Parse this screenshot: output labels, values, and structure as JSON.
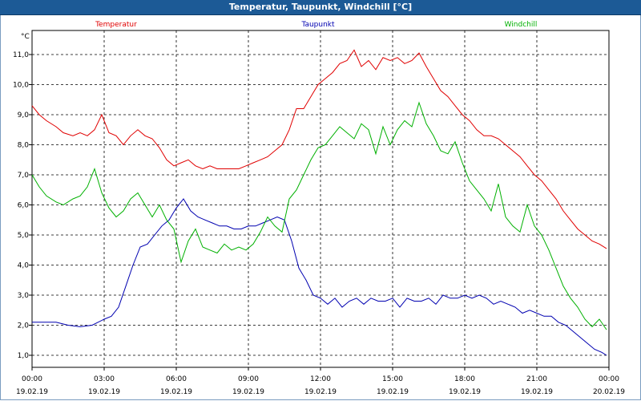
{
  "window": {
    "title": "Temperatur, Taupunkt, Windchill [°C]"
  },
  "chart_data": {
    "type": "line",
    "title": "Temperatur, Taupunkt, Windchill [°C]",
    "ylabel": "°C",
    "xlabel": "",
    "ylim": [
      0.6,
      11.8
    ],
    "y_ticks": [
      1.0,
      2.0,
      3.0,
      4.0,
      5.0,
      6.0,
      7.0,
      8.0,
      9.0,
      10.0,
      11.0
    ],
    "y_tick_labels": [
      "1,0",
      "2,0",
      "3,0",
      "4,0",
      "5,0",
      "6,0",
      "7,0",
      "8,0",
      "9,0",
      "10,0",
      "11,0"
    ],
    "xlim": [
      0,
      24
    ],
    "x_ticks": [
      {
        "hour": 0,
        "time": "00:00",
        "date": "19.02.19"
      },
      {
        "hour": 3,
        "time": "03:00",
        "date": "19.02.19"
      },
      {
        "hour": 6,
        "time": "06:00",
        "date": "19.02.19"
      },
      {
        "hour": 9,
        "time": "09:00",
        "date": "19.02.19"
      },
      {
        "hour": 12,
        "time": "12:00",
        "date": "19.02.19"
      },
      {
        "hour": 15,
        "time": "15:00",
        "date": "19.02.19"
      },
      {
        "hour": 18,
        "time": "18:00",
        "date": "19.02.19"
      },
      {
        "hour": 21,
        "time": "21:00",
        "date": "19.02.19"
      },
      {
        "hour": 24,
        "time": "00:00",
        "date": "20.02.19"
      }
    ],
    "grid": true,
    "series": [
      {
        "name": "Temperatur",
        "color": "#e00000",
        "x": [
          0,
          0.3,
          0.6,
          1,
          1.3,
          1.7,
          2,
          2.3,
          2.6,
          2.9,
          3.2,
          3.5,
          3.8,
          4.1,
          4.4,
          4.7,
          5,
          5.3,
          5.6,
          5.9,
          6.2,
          6.5,
          6.8,
          7.1,
          7.4,
          7.7,
          8,
          8.3,
          8.6,
          8.9,
          9.2,
          9.5,
          9.8,
          10.1,
          10.4,
          10.7,
          11,
          11.3,
          11.6,
          11.9,
          12.2,
          12.5,
          12.8,
          13.1,
          13.4,
          13.7,
          14,
          14.3,
          14.6,
          14.9,
          15.2,
          15.5,
          15.8,
          16.1,
          16.4,
          16.7,
          17,
          17.3,
          17.6,
          17.9,
          18.2,
          18.5,
          18.8,
          19.1,
          19.4,
          19.7,
          20,
          20.3,
          20.6,
          20.9,
          21.2,
          21.5,
          21.8,
          22.1,
          22.4,
          22.7,
          23,
          23.3,
          23.6,
          23.9
        ],
        "values": [
          9.3,
          9.0,
          8.8,
          8.6,
          8.4,
          8.3,
          8.4,
          8.3,
          8.5,
          9.0,
          8.4,
          8.3,
          8.0,
          8.3,
          8.5,
          8.3,
          8.2,
          7.9,
          7.5,
          7.3,
          7.4,
          7.5,
          7.3,
          7.2,
          7.3,
          7.2,
          7.2,
          7.2,
          7.2,
          7.3,
          7.4,
          7.5,
          7.6,
          7.8,
          8.0,
          8.5,
          9.2,
          9.2,
          9.6,
          10.0,
          10.2,
          10.4,
          10.7,
          10.8,
          11.15,
          10.6,
          10.8,
          10.5,
          10.9,
          10.8,
          10.9,
          10.7,
          10.8,
          11.05,
          10.6,
          10.2,
          9.8,
          9.6,
          9.3,
          9.0,
          8.8,
          8.5,
          8.3,
          8.3,
          8.2,
          8.0,
          7.8,
          7.6,
          7.3,
          7.0,
          6.8,
          6.5,
          6.2,
          5.8,
          5.5,
          5.2,
          5.0,
          4.8,
          4.7,
          4.55
        ]
      },
      {
        "name": "Taupunkt",
        "color": "#0000b0",
        "x": [
          0,
          0.5,
          1,
          1.5,
          2,
          2.5,
          3,
          3.3,
          3.6,
          3.9,
          4.2,
          4.5,
          4.8,
          5.1,
          5.4,
          5.7,
          6,
          6.3,
          6.6,
          6.9,
          7.2,
          7.5,
          7.8,
          8.1,
          8.4,
          8.7,
          9,
          9.3,
          9.6,
          9.9,
          10.2,
          10.5,
          10.8,
          11.1,
          11.4,
          11.7,
          12,
          12.3,
          12.6,
          12.9,
          13.2,
          13.5,
          13.8,
          14.1,
          14.4,
          14.7,
          15,
          15.3,
          15.6,
          15.9,
          16.2,
          16.5,
          16.8,
          17.1,
          17.4,
          17.7,
          18,
          18.3,
          18.6,
          18.9,
          19.2,
          19.5,
          19.8,
          20.1,
          20.4,
          20.7,
          21,
          21.3,
          21.6,
          21.9,
          22.2,
          22.5,
          22.8,
          23.1,
          23.4,
          23.7,
          23.9
        ],
        "values": [
          2.1,
          2.1,
          2.1,
          2.0,
          1.95,
          2.0,
          2.2,
          2.3,
          2.6,
          3.3,
          4.0,
          4.6,
          4.7,
          5.0,
          5.3,
          5.5,
          5.9,
          6.2,
          5.8,
          5.6,
          5.5,
          5.4,
          5.3,
          5.3,
          5.2,
          5.2,
          5.3,
          5.3,
          5.4,
          5.5,
          5.6,
          5.5,
          4.8,
          3.9,
          3.5,
          3.0,
          2.9,
          2.7,
          2.9,
          2.6,
          2.8,
          2.9,
          2.7,
          2.9,
          2.8,
          2.8,
          2.9,
          2.6,
          2.9,
          2.8,
          2.8,
          2.9,
          2.7,
          3.0,
          2.9,
          2.9,
          3.0,
          2.9,
          3.0,
          2.9,
          2.7,
          2.8,
          2.7,
          2.6,
          2.4,
          2.5,
          2.4,
          2.3,
          2.3,
          2.1,
          2.0,
          1.8,
          1.6,
          1.4,
          1.2,
          1.1,
          1.0
        ]
      },
      {
        "name": "Windchill",
        "color": "#00b000",
        "x": [
          0,
          0.3,
          0.6,
          1,
          1.3,
          1.7,
          2,
          2.3,
          2.6,
          2.9,
          3.2,
          3.5,
          3.8,
          4.1,
          4.4,
          4.7,
          5,
          5.3,
          5.6,
          5.9,
          6.2,
          6.5,
          6.8,
          7.1,
          7.4,
          7.7,
          8,
          8.3,
          8.6,
          8.9,
          9.2,
          9.5,
          9.8,
          10.1,
          10.4,
          10.7,
          11,
          11.3,
          11.6,
          11.9,
          12.2,
          12.5,
          12.8,
          13.1,
          13.4,
          13.7,
          14,
          14.3,
          14.6,
          14.9,
          15.2,
          15.5,
          15.8,
          16.1,
          16.4,
          16.7,
          17,
          17.3,
          17.6,
          17.9,
          18.2,
          18.5,
          18.8,
          19.1,
          19.4,
          19.7,
          20,
          20.3,
          20.6,
          20.9,
          21.2,
          21.5,
          21.8,
          22.1,
          22.4,
          22.7,
          23,
          23.3,
          23.6,
          23.9
        ],
        "values": [
          7.0,
          6.6,
          6.3,
          6.1,
          6.0,
          6.2,
          6.3,
          6.6,
          7.2,
          6.4,
          5.9,
          5.6,
          5.8,
          6.2,
          6.4,
          6.0,
          5.6,
          6.0,
          5.5,
          5.2,
          4.1,
          4.8,
          5.2,
          4.6,
          4.5,
          4.4,
          4.7,
          4.5,
          4.6,
          4.5,
          4.7,
          5.1,
          5.6,
          5.3,
          5.1,
          6.2,
          6.5,
          7.0,
          7.5,
          7.9,
          8.0,
          8.3,
          8.6,
          8.4,
          8.2,
          8.7,
          8.5,
          7.7,
          8.6,
          8.0,
          8.5,
          8.8,
          8.6,
          9.4,
          8.7,
          8.3,
          7.8,
          7.7,
          8.1,
          7.4,
          6.8,
          6.5,
          6.2,
          5.8,
          6.7,
          5.6,
          5.3,
          5.1,
          6.0,
          5.3,
          5.0,
          4.5,
          3.9,
          3.3,
          2.9,
          2.6,
          2.2,
          1.95,
          2.2,
          1.85
        ]
      }
    ]
  }
}
